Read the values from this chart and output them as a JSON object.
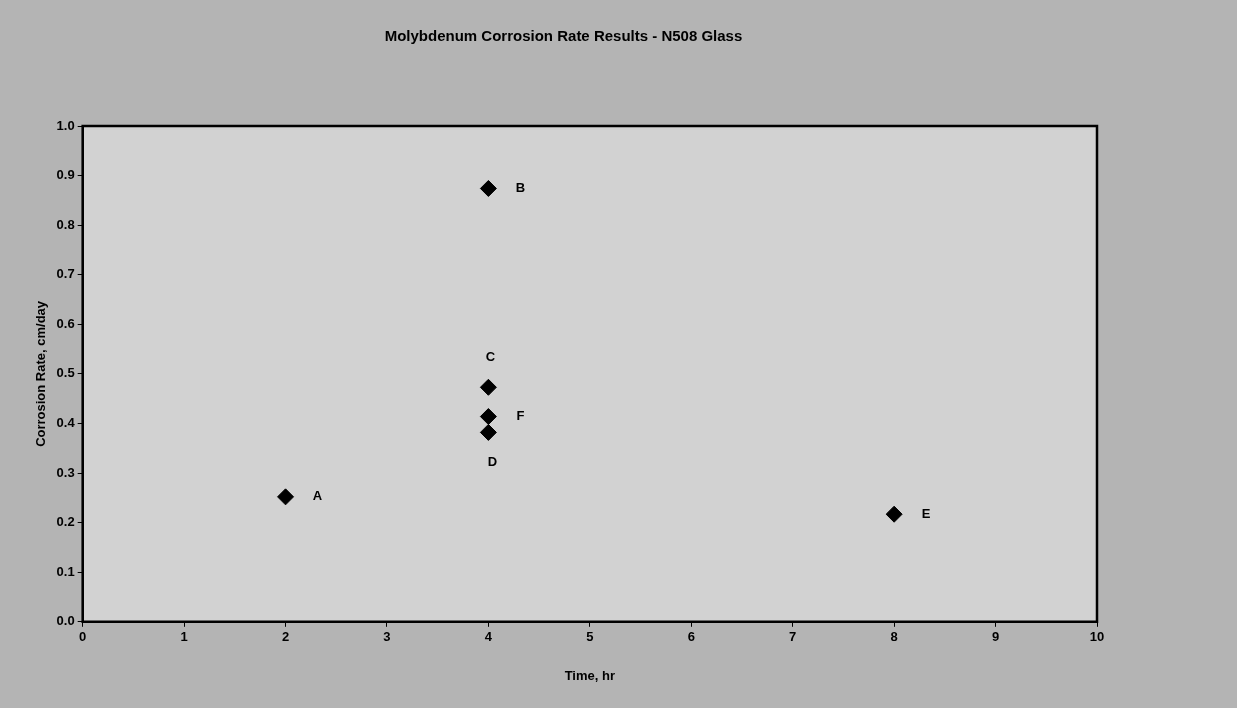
{
  "chart_data": {
    "type": "scatter",
    "title": "Molybdenum Corrosion Rate Results - N508 Glass",
    "xlabel": "Time, hr",
    "ylabel": "Corrosion Rate, cm/day",
    "x": [
      2,
      4,
      4,
      4,
      4,
      8
    ],
    "series": [
      {
        "color": "#000000",
        "values": [
          0.252,
          0.874,
          0.473,
          0.414,
          0.382,
          0.217
        ]
      }
    ],
    "marker": "diamond",
    "grid": false,
    "legend": false,
    "xlim": [
      0,
      10
    ],
    "xticks": [
      0,
      1,
      2,
      3,
      4,
      5,
      6,
      7,
      8,
      9,
      10
    ],
    "ylim": [
      0,
      1
    ],
    "yticks": [
      {
        "value": 0,
        "label": "0.0"
      },
      0.1,
      0.2,
      0.3,
      0.4,
      0.5,
      0.6,
      0.7,
      0.8,
      0.9,
      {
        "value": 1,
        "label": "1.0"
      }
    ],
    "annotations": [
      {
        "text": "A",
        "x": 2,
        "y": 0.252
      },
      {
        "text": "B",
        "x": 4,
        "y": 0.874
      },
      {
        "text": "C",
        "x": 4,
        "y": 0.473
      },
      {
        "text": "F",
        "x": 4,
        "y": 0.414
      },
      {
        "text": "D",
        "x": 4,
        "y": 0.382
      },
      {
        "text": "E",
        "x": 8,
        "y": 0.217
      }
    ]
  }
}
